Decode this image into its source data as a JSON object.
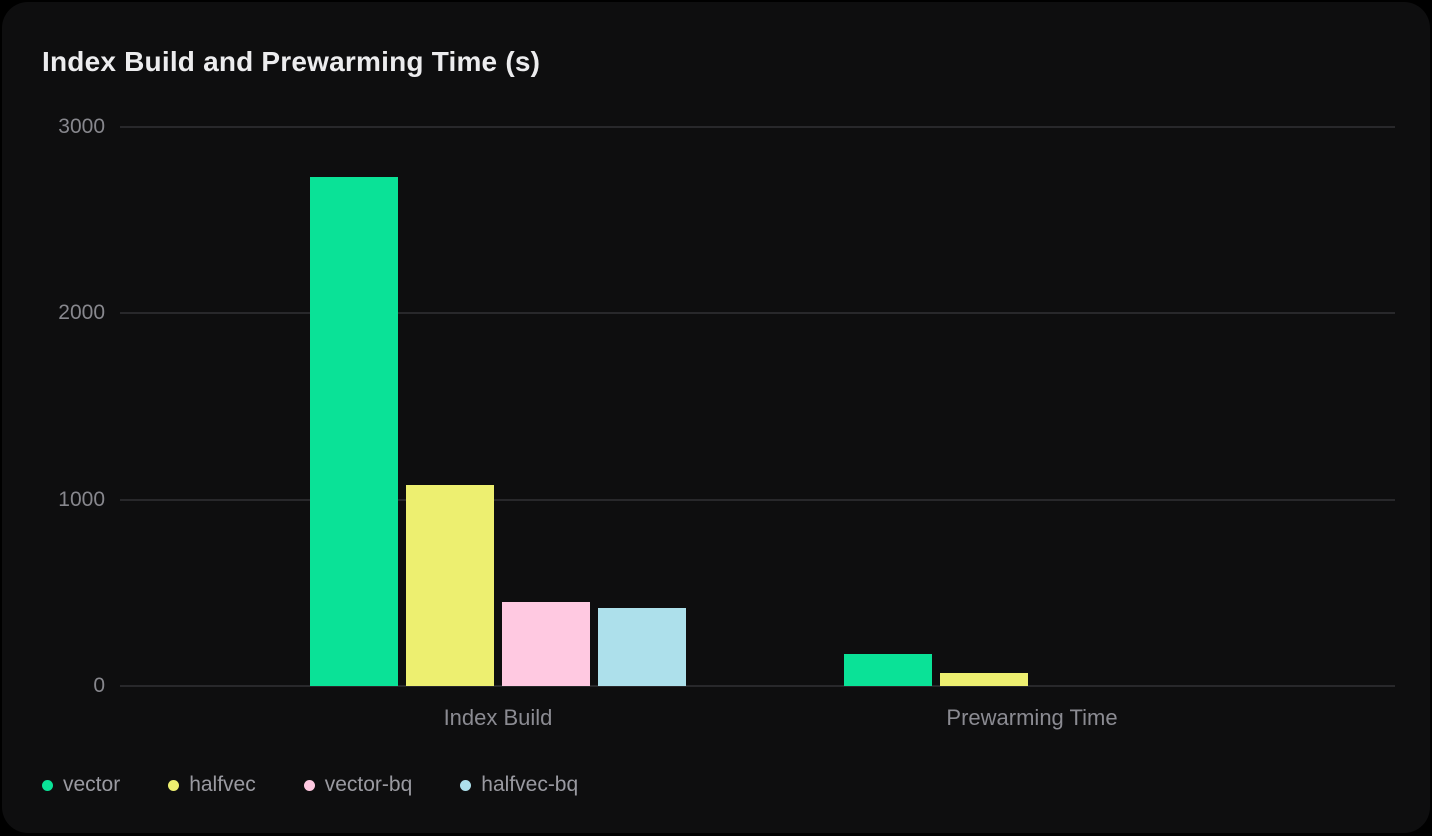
{
  "chart": {
    "title": "Index Build and Prewarming Time (s)"
  },
  "chart_data": {
    "type": "bar",
    "title": "Index Build and Prewarming Time (s)",
    "categories": [
      "Index Build",
      "Prewarming Time"
    ],
    "series": [
      {
        "name": "vector",
        "color": "#0ae297",
        "values": [
          2730,
          170
        ]
      },
      {
        "name": "halfvec",
        "color": "#edef70",
        "values": [
          1080,
          70
        ]
      },
      {
        "name": "vector-bq",
        "color": "#ffc9e1",
        "values": [
          450,
          0
        ]
      },
      {
        "name": "halfvec-bq",
        "color": "#ade0eb",
        "values": [
          420,
          0
        ]
      }
    ],
    "xlabel": "",
    "ylabel": "",
    "ylim": [
      0,
      3000
    ],
    "yticks": [
      0,
      1000,
      2000,
      3000
    ],
    "grid": true,
    "legend_position": "bottom"
  },
  "colors": {
    "card_background": "#0e0e0f",
    "page_background": "#000000",
    "gridline": "#28282b",
    "title_text": "#ececee",
    "axis_text": "#87878d",
    "legend_text": "#9a9aa1"
  }
}
